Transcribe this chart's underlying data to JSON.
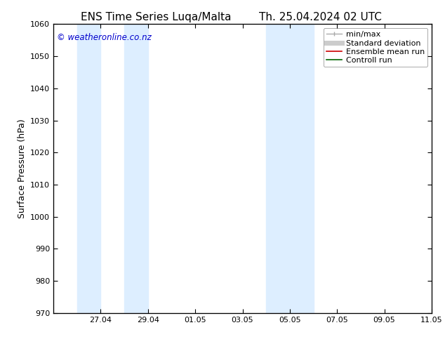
{
  "title_left": "ENS Time Series Luqa/Malta",
  "title_right": "Th. 25.04.2024 02 UTC",
  "ylabel": "Surface Pressure (hPa)",
  "ylim": [
    970,
    1060
  ],
  "yticks": [
    970,
    980,
    990,
    1000,
    1010,
    1020,
    1030,
    1040,
    1050,
    1060
  ],
  "xlabel": "",
  "xtick_labels": [
    "27.04",
    "29.04",
    "01.05",
    "03.05",
    "05.05",
    "07.05",
    "09.05",
    "11.05"
  ],
  "xmin": 0.0,
  "xmax": 16.0,
  "xtick_positions": [
    2.0,
    4.0,
    6.0,
    8.0,
    10.0,
    12.0,
    14.0,
    16.0
  ],
  "shaded_bands": [
    {
      "xmin": 1.0,
      "xmax": 2.0,
      "color": "#ddeeff"
    },
    {
      "xmin": 3.0,
      "xmax": 4.0,
      "color": "#ddeeff"
    },
    {
      "xmin": 9.0,
      "xmax": 10.0,
      "color": "#ddeeff"
    },
    {
      "xmin": 10.0,
      "xmax": 11.0,
      "color": "#ddeeff"
    }
  ],
  "watermark": "© weatheronline.co.nz",
  "watermark_color": "#0000cc",
  "legend_items": [
    {
      "label": "min/max",
      "color": "#aaaaaa",
      "lw": 1.0,
      "style": "minmax"
    },
    {
      "label": "Standard deviation",
      "color": "#cccccc",
      "lw": 5,
      "style": "line"
    },
    {
      "label": "Ensemble mean run",
      "color": "#cc0000",
      "lw": 1.2,
      "style": "line"
    },
    {
      "label": "Controll run",
      "color": "#006600",
      "lw": 1.2,
      "style": "line"
    }
  ],
  "bg_color": "#ffffff",
  "title_fontsize": 11,
  "axis_label_fontsize": 9,
  "tick_fontsize": 8,
  "legend_fontsize": 8
}
